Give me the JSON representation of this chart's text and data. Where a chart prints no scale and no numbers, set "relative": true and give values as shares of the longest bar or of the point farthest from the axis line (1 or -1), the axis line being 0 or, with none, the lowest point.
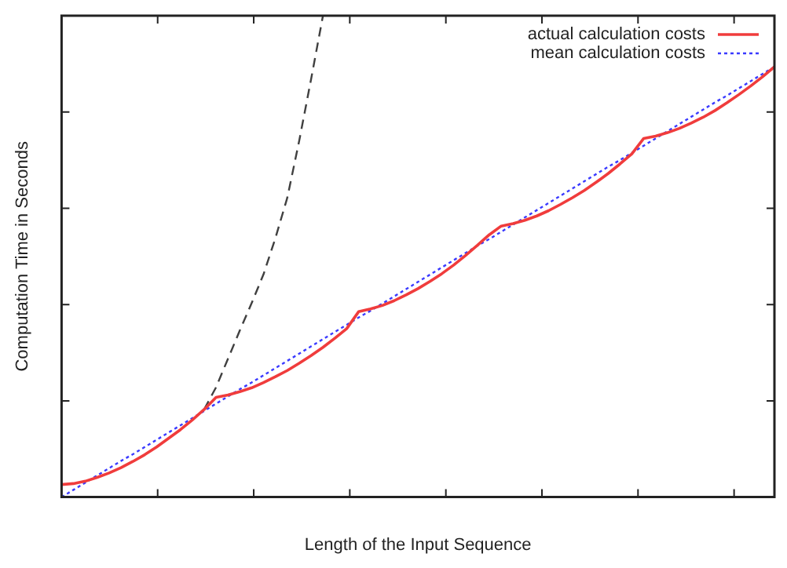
{
  "chart_data": {
    "type": "line",
    "relative": true,
    "xlabel": "Length of the Input Sequence",
    "ylabel": "Computation Time in Seconds",
    "legend": "top right",
    "tick_labels": false,
    "grid": false,
    "marker": "none",
    "categories": [
      null,
      null,
      null,
      null,
      null,
      null,
      null,
      null,
      null,
      null,
      null,
      null,
      null,
      null,
      null,
      null,
      null,
      null,
      null,
      null,
      null,
      null,
      null,
      null,
      null,
      null,
      null,
      null,
      null,
      null,
      null,
      null,
      null,
      null,
      null,
      null,
      null,
      null,
      null,
      null,
      null,
      null,
      null,
      null,
      null,
      null,
      null,
      null,
      null,
      null,
      null,
      null,
      null,
      null,
      null,
      null,
      null,
      null,
      null,
      null,
      null
    ],
    "series": [
      {
        "name": "actual calculation costs",
        "color": "#f03c3c",
        "line_style": "solid",
        "values": [
          0.026,
          0.028,
          0.033,
          0.041,
          0.05,
          0.061,
          0.074,
          0.088,
          0.104,
          0.122,
          0.14,
          0.16,
          0.182,
          0.207,
          0.212,
          0.219,
          0.227,
          0.238,
          0.25,
          0.263,
          0.278,
          0.294,
          0.311,
          0.33,
          0.35,
          0.385,
          0.391,
          0.398,
          0.408,
          0.42,
          0.433,
          0.448,
          0.464,
          0.482,
          0.502,
          0.523,
          0.545,
          0.563,
          0.568,
          0.575,
          0.584,
          0.595,
          0.608,
          0.622,
          0.637,
          0.654,
          0.672,
          0.692,
          0.713,
          0.745,
          0.75,
          0.757,
          0.766,
          0.777,
          0.789,
          0.803,
          0.819,
          0.836,
          0.854,
          0.873,
          0.894
        ]
      },
      {
        "name": "mean calculation costs",
        "color": "#3a3aff",
        "line_style": "dotted",
        "values": [
          0,
          0.015,
          0.03,
          0.045,
          0.06,
          0.075,
          0.089,
          0.104,
          0.119,
          0.134,
          0.149,
          0.164,
          0.179,
          0.194,
          0.209,
          0.224,
          0.238,
          0.253,
          0.268,
          0.283,
          0.298,
          0.313,
          0.328,
          0.343,
          0.358,
          0.373,
          0.387,
          0.402,
          0.417,
          0.432,
          0.447,
          0.462,
          0.477,
          0.492,
          0.507,
          0.522,
          0.536,
          0.551,
          0.566,
          0.581,
          0.596,
          0.611,
          0.626,
          0.641,
          0.656,
          0.671,
          0.686,
          0.7,
          0.715,
          0.73,
          0.745,
          0.76,
          0.775,
          0.79,
          0.805,
          0.82,
          0.834,
          0.849,
          0.864,
          0.879,
          0.894
        ]
      },
      {
        "color": "#404040",
        "line_style": "dashed",
        "values": [
          null,
          null,
          null,
          null,
          null,
          null,
          null,
          null,
          null,
          null,
          null,
          null,
          0.182,
          0.228,
          0.287,
          0.346,
          0.403,
          0.463,
          0.538,
          0.622,
          0.74,
          0.868,
          1.0,
          null,
          null,
          null,
          null,
          null,
          null,
          null,
          null,
          null,
          null,
          null,
          null,
          null,
          null,
          null,
          null,
          null,
          null,
          null,
          null,
          null,
          null,
          null,
          null,
          null,
          null,
          null,
          null,
          null,
          null,
          null,
          null,
          null,
          null,
          null,
          null,
          null,
          null
        ]
      }
    ]
  }
}
